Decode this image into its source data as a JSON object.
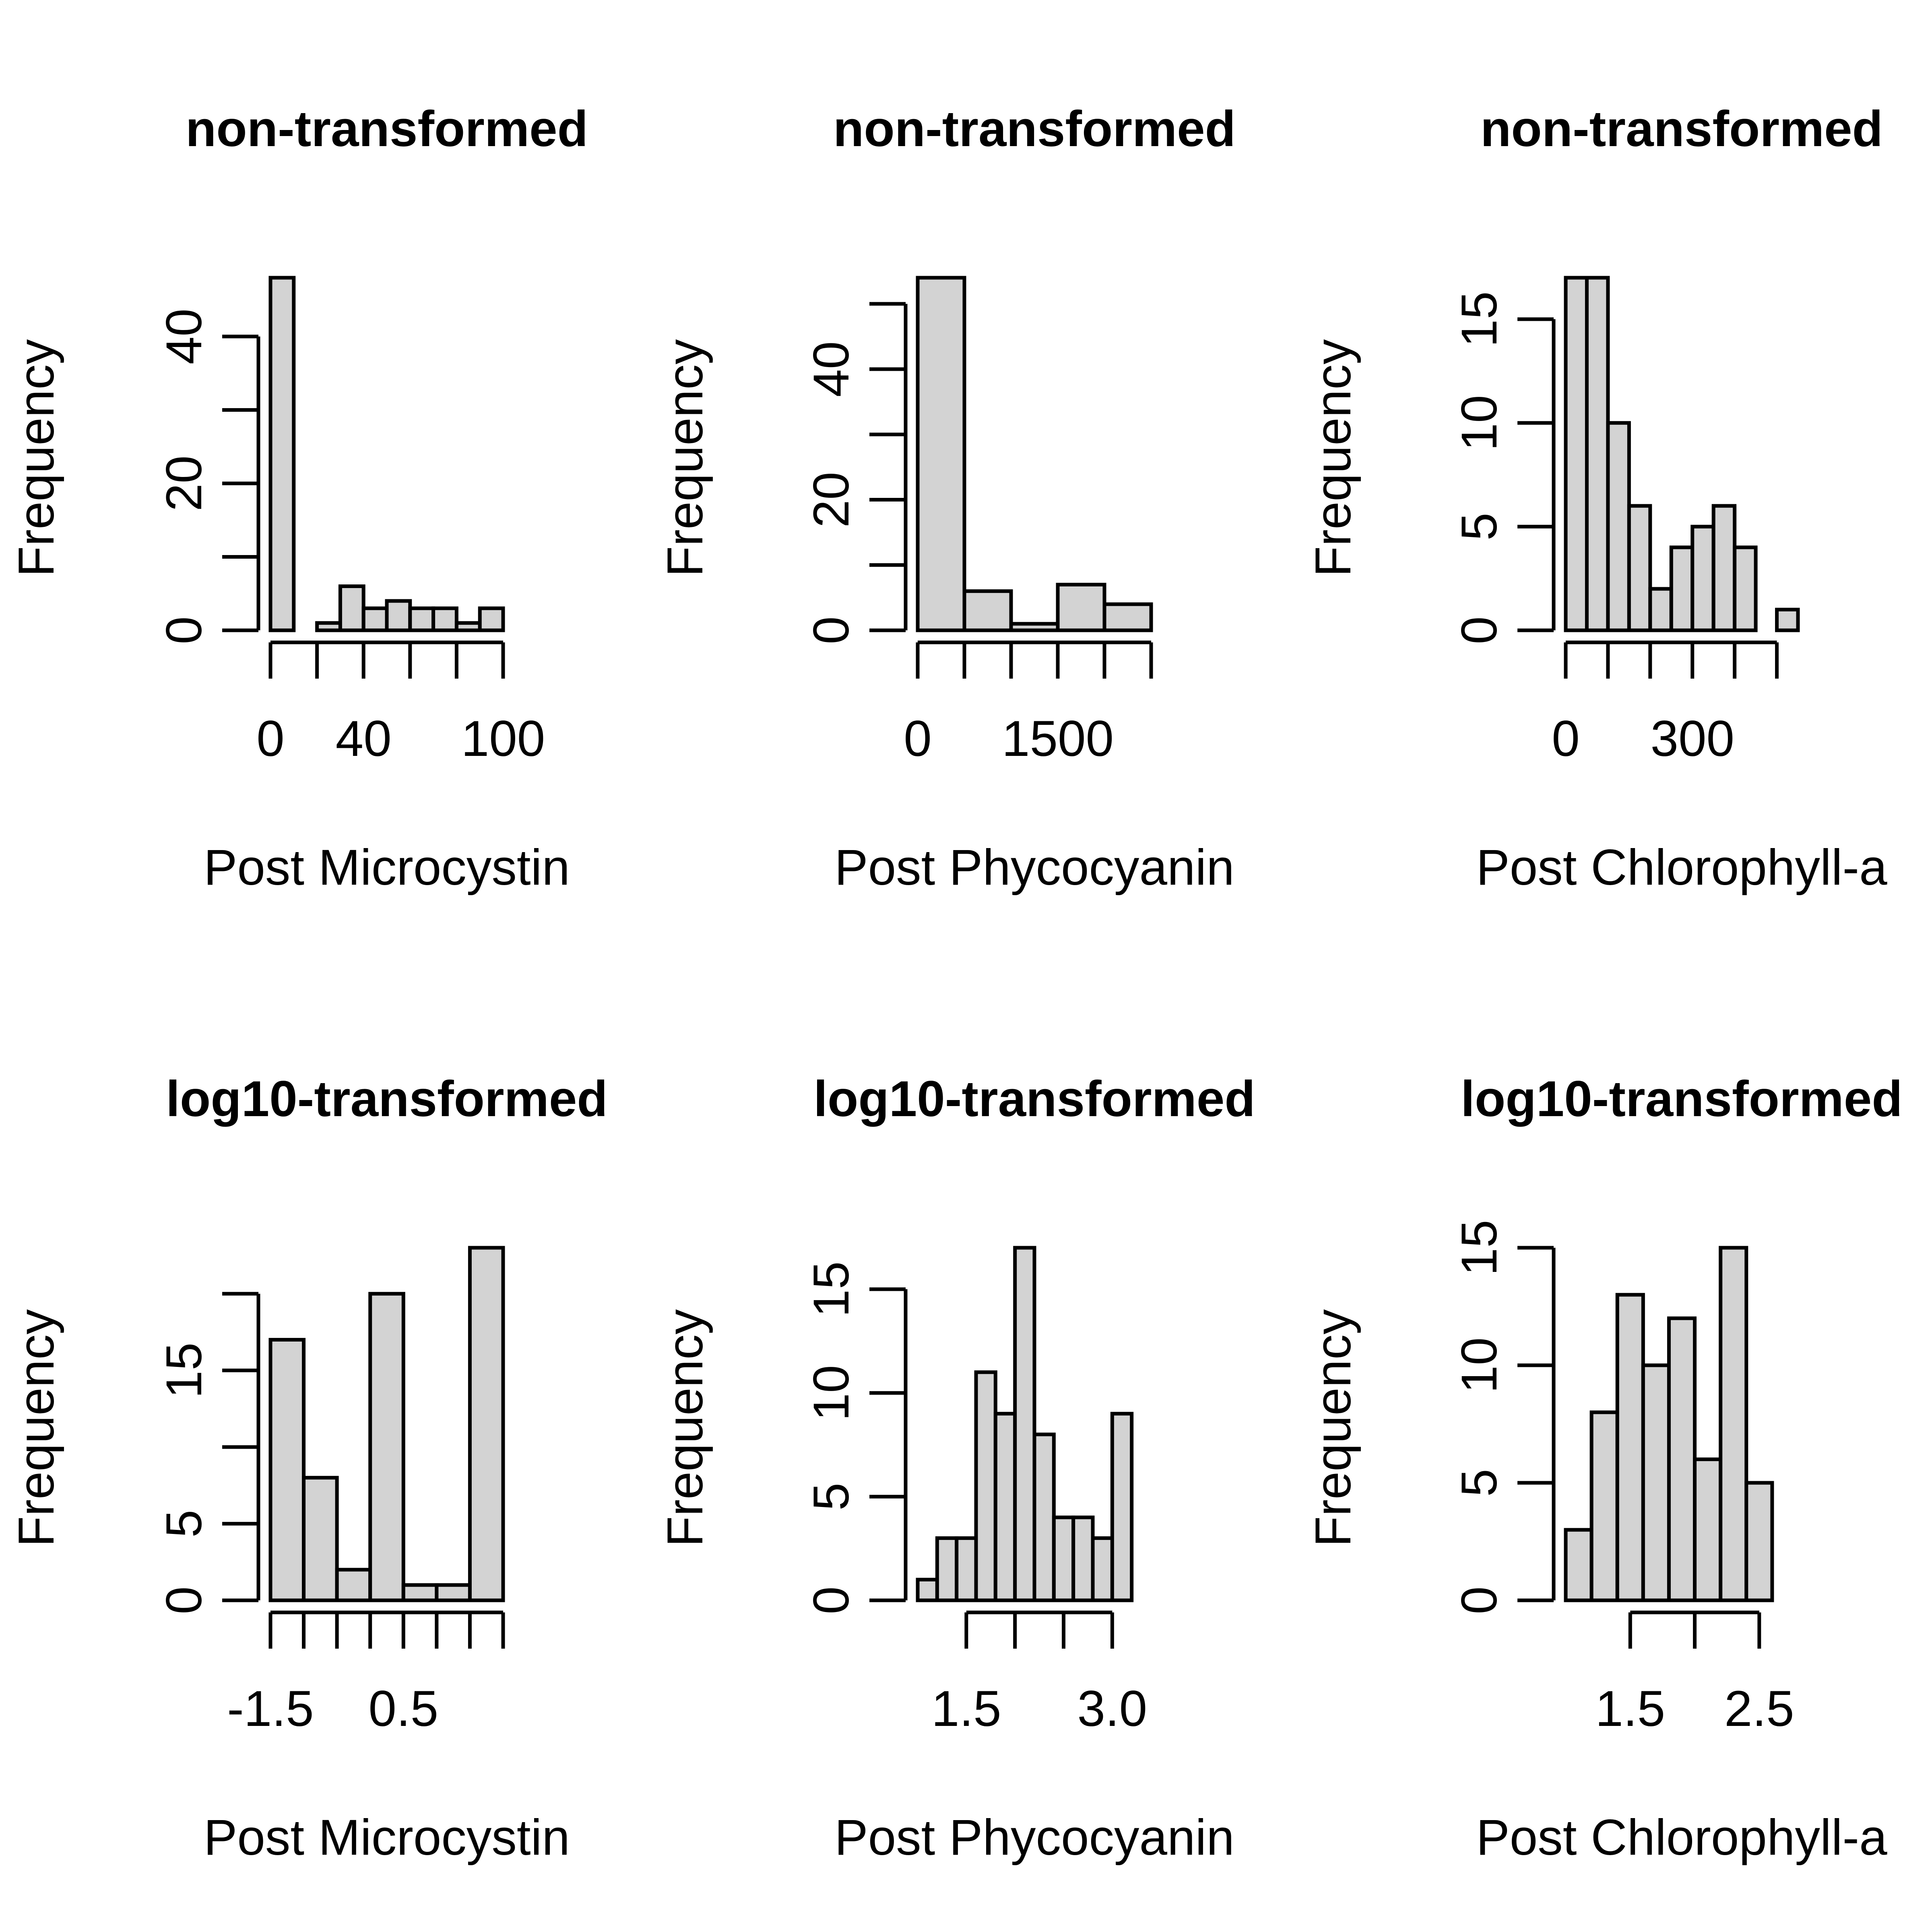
{
  "chart_data": [
    {
      "type": "bar",
      "title": "non-transformed",
      "xlabel": "Post Microcystin",
      "ylabel": "Frequency",
      "xlim": [
        0,
        100
      ],
      "ylim": [
        0,
        48
      ],
      "bins": [
        [
          0,
          10
        ],
        [
          10,
          20
        ],
        [
          20,
          30
        ],
        [
          30,
          40
        ],
        [
          40,
          50
        ],
        [
          50,
          60
        ],
        [
          60,
          70
        ],
        [
          70,
          80
        ],
        [
          80,
          90
        ],
        [
          90,
          100
        ]
      ],
      "values": [
        48,
        0,
        1,
        6,
        3,
        4,
        3,
        3,
        1,
        3
      ],
      "xticks": [
        0,
        20,
        40,
        60,
        80,
        100
      ],
      "xtick_labels": [
        {
          "value": 0,
          "text": "0"
        },
        {
          "value": 40,
          "text": "40"
        },
        {
          "value": 100,
          "text": "100"
        }
      ],
      "yticks": [
        0,
        10,
        20,
        30,
        40
      ],
      "ytick_labels": [
        {
          "value": 0,
          "text": "0"
        },
        {
          "value": 20,
          "text": "20"
        },
        {
          "value": 40,
          "text": "40"
        }
      ]
    },
    {
      "type": "bar",
      "title": "non-transformed",
      "xlabel": "Post Phycocyanin",
      "ylabel": "Frequency",
      "xlim": [
        0,
        2500
      ],
      "ylim": [
        0,
        54
      ],
      "bins": [
        [
          0,
          500
        ],
        [
          500,
          1000
        ],
        [
          1000,
          1500
        ],
        [
          1500,
          2000
        ],
        [
          2000,
          2500
        ]
      ],
      "values": [
        54,
        6,
        1,
        7,
        4
      ],
      "xticks": [
        0,
        500,
        1000,
        1500,
        2000,
        2500
      ],
      "xtick_labels": [
        {
          "value": 0,
          "text": "0"
        },
        {
          "value": 1500,
          "text": "1500"
        }
      ],
      "yticks": [
        0,
        10,
        20,
        30,
        40,
        50
      ],
      "ytick_labels": [
        {
          "value": 0,
          "text": "0"
        },
        {
          "value": 20,
          "text": "20"
        },
        {
          "value": 40,
          "text": "40"
        }
      ]
    },
    {
      "type": "bar",
      "title": "non-transformed",
      "xlabel": "Post Chlorophyll-a",
      "ylabel": "Frequency",
      "xlim": [
        0,
        550
      ],
      "ylim": [
        0,
        17
      ],
      "bins": [
        [
          0,
          50
        ],
        [
          50,
          100
        ],
        [
          100,
          150
        ],
        [
          150,
          200
        ],
        [
          200,
          250
        ],
        [
          250,
          300
        ],
        [
          300,
          350
        ],
        [
          350,
          400
        ],
        [
          400,
          450
        ],
        [
          450,
          500
        ],
        [
          500,
          550
        ]
      ],
      "values": [
        17,
        17,
        10,
        6,
        2,
        4,
        5,
        6,
        4,
        0,
        1
      ],
      "xticks": [
        0,
        100,
        200,
        300,
        400,
        500
      ],
      "xtick_labels": [
        {
          "value": 0,
          "text": "0"
        },
        {
          "value": 300,
          "text": "300"
        }
      ],
      "yticks": [
        0,
        5,
        10,
        15
      ],
      "ytick_labels": [
        {
          "value": 0,
          "text": "0"
        },
        {
          "value": 5,
          "text": "5"
        },
        {
          "value": 10,
          "text": "10"
        },
        {
          "value": 15,
          "text": "15"
        }
      ]
    },
    {
      "type": "bar",
      "title": "log10-transformed",
      "xlabel": "Post Microcystin",
      "ylabel": "Frequency",
      "xlim": [
        -1.5,
        2.0
      ],
      "ylim": [
        0,
        23
      ],
      "bins": [
        [
          -1.5,
          -1.0
        ],
        [
          -1.0,
          -0.5
        ],
        [
          -0.5,
          0.0
        ],
        [
          0.0,
          0.5
        ],
        [
          0.5,
          1.0
        ],
        [
          1.0,
          1.5
        ],
        [
          1.5,
          2.0
        ]
      ],
      "values": [
        17,
        8,
        2,
        20,
        1,
        1,
        23
      ],
      "xticks": [
        -1.5,
        -1.0,
        -0.5,
        0.0,
        0.5,
        1.0,
        1.5,
        2.0
      ],
      "xtick_labels": [
        {
          "value": -1.5,
          "text": "-1.5"
        },
        {
          "value": 0.5,
          "text": "0.5"
        }
      ],
      "yticks": [
        0,
        5,
        10,
        15,
        20
      ],
      "ytick_labels": [
        {
          "value": 0,
          "text": "0"
        },
        {
          "value": 5,
          "text": "5"
        },
        {
          "value": 15,
          "text": "15"
        }
      ]
    },
    {
      "type": "bar",
      "title": "log10-transformed",
      "xlabel": "Post Phycocyanin",
      "ylabel": "Frequency",
      "xlim": [
        1.0,
        3.4
      ],
      "ylim": [
        0,
        17
      ],
      "bins": [
        [
          1.0,
          1.2
        ],
        [
          1.2,
          1.4
        ],
        [
          1.4,
          1.6
        ],
        [
          1.6,
          1.8
        ],
        [
          1.8,
          2.0
        ],
        [
          2.0,
          2.2
        ],
        [
          2.2,
          2.4
        ],
        [
          2.4,
          2.6
        ],
        [
          2.6,
          2.8
        ],
        [
          2.8,
          3.0
        ],
        [
          3.0,
          3.2
        ],
        [
          3.2,
          3.4
        ]
      ],
      "values": [
        1,
        3,
        3,
        11,
        9,
        17,
        8,
        4,
        4,
        3,
        9,
        0
      ],
      "xticks": [
        1.5,
        2.0,
        2.5,
        3.0
      ],
      "xtick_labels": [
        {
          "value": 1.5,
          "text": "1.5"
        },
        {
          "value": 3.0,
          "text": "3.0"
        }
      ],
      "yticks": [
        0,
        5,
        10,
        15
      ],
      "ytick_labels": [
        {
          "value": 0,
          "text": "0"
        },
        {
          "value": 5,
          "text": "5"
        },
        {
          "value": 10,
          "text": "10"
        },
        {
          "value": 15,
          "text": "15"
        }
      ]
    },
    {
      "type": "bar",
      "title": "log10-transformed",
      "xlabel": "Post Chlorophyll-a",
      "ylabel": "Frequency",
      "xlim": [
        1.0,
        2.8
      ],
      "ylim": [
        0,
        15
      ],
      "bins": [
        [
          1.0,
          1.2
        ],
        [
          1.2,
          1.4
        ],
        [
          1.4,
          1.6
        ],
        [
          1.6,
          1.8
        ],
        [
          1.8,
          2.0
        ],
        [
          2.0,
          2.2
        ],
        [
          2.2,
          2.4
        ],
        [
          2.4,
          2.6
        ],
        [
          2.6,
          2.8
        ]
      ],
      "values": [
        3,
        8,
        13,
        10,
        12,
        6,
        15,
        5,
        0
      ],
      "xticks": [
        1.5,
        2.0,
        2.5
      ],
      "xtick_labels": [
        {
          "value": 1.5,
          "text": "1.5"
        },
        {
          "value": 2.5,
          "text": "2.5"
        }
      ],
      "yticks": [
        0,
        5,
        10,
        15
      ],
      "ytick_labels": [
        {
          "value": 0,
          "text": "0"
        },
        {
          "value": 5,
          "text": "5"
        },
        {
          "value": 10,
          "text": "10"
        },
        {
          "value": 15,
          "text": "15"
        }
      ]
    }
  ]
}
